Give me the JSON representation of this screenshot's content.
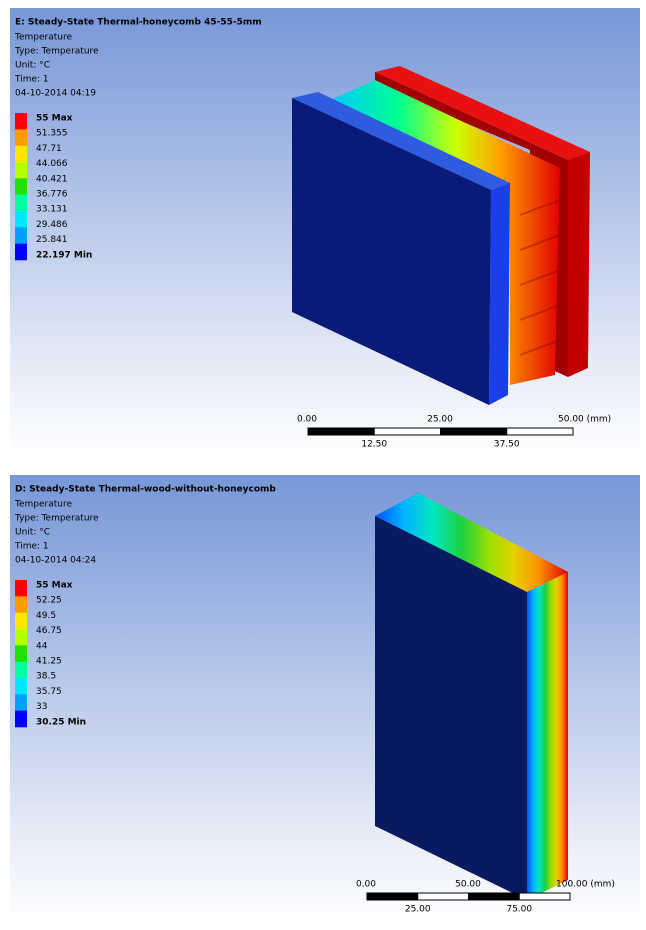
{
  "panels": [
    {
      "title": "E: Steady-State Thermal-honeycomb 45-55-5mm",
      "lines": [
        "Temperature",
        "Type: Temperature",
        "Unit: °C",
        "Time: 1",
        "04-10-2014 04:19"
      ],
      "legend": [
        "55 Max",
        "51.355",
        "47.71",
        "44.066",
        "40.421",
        "36.776",
        "33.131",
        "29.486",
        "25.841",
        "22.197 Min"
      ],
      "legend_colors": [
        "#ff0000",
        "#ff9b00",
        "#ffe600",
        "#b4ff00",
        "#1ee100",
        "#00ffa0",
        "#00e6ff",
        "#00a0ff",
        "#0000ff"
      ],
      "scale_top": [
        "0.00",
        "25.00",
        "50.00 (mm)"
      ],
      "scale_bottom": [
        "12.50",
        "37.50"
      ]
    },
    {
      "title": "D: Steady-State Thermal-wood-without-honeycomb",
      "lines": [
        "Temperature",
        "Type: Temperature",
        "Unit: °C",
        "Time: 1",
        "04-10-2014 04:24"
      ],
      "legend": [
        "55 Max",
        "52.25",
        "49.5",
        "46.75",
        "44",
        "41.25",
        "38.5",
        "35.75",
        "33",
        "30.25 Min"
      ],
      "legend_colors": [
        "#ff0000",
        "#ff9b00",
        "#ffe600",
        "#b4ff00",
        "#1ee100",
        "#00ffa0",
        "#00e6ff",
        "#00a0ff",
        "#0000ff"
      ],
      "scale_top": [
        "0.00",
        "50.00",
        "100.00 (mm)"
      ],
      "scale_bottom": [
        "25.00",
        "75.00"
      ]
    }
  ]
}
